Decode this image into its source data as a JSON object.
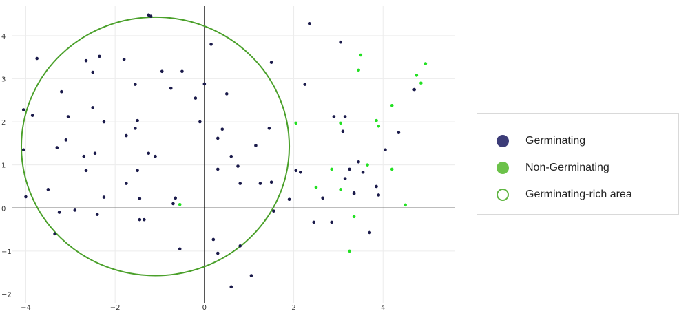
{
  "chart_data": {
    "type": "scatter",
    "xlim": [
      -4.3,
      5.6
    ],
    "ylim": [
      -2.2,
      4.7
    ],
    "x_ticks": [
      -4,
      -2,
      0,
      2,
      4
    ],
    "y_ticks": [
      -2,
      -1,
      0,
      1,
      2,
      3,
      4
    ],
    "grid": true,
    "legend_position": "right",
    "series": [
      {
        "name": "Germinating",
        "color": "#1a1a4a",
        "points": [
          [
            -4.05,
            2.28
          ],
          [
            -4.05,
            1.35
          ],
          [
            -4.0,
            0.26
          ],
          [
            -3.85,
            2.15
          ],
          [
            -3.75,
            3.47
          ],
          [
            -3.5,
            0.43
          ],
          [
            -3.3,
            1.4
          ],
          [
            -3.25,
            -0.1
          ],
          [
            -3.2,
            2.7
          ],
          [
            -3.1,
            1.58
          ],
          [
            -3.05,
            2.12
          ],
          [
            -2.9,
            -0.05
          ],
          [
            -3.35,
            -0.6
          ],
          [
            -2.65,
            3.42
          ],
          [
            -2.7,
            1.2
          ],
          [
            -2.65,
            0.87
          ],
          [
            -2.5,
            3.15
          ],
          [
            -2.5,
            2.33
          ],
          [
            -2.45,
            1.27
          ],
          [
            -2.4,
            -0.15
          ],
          [
            -2.35,
            3.52
          ],
          [
            -2.25,
            2.0
          ],
          [
            -2.25,
            0.25
          ],
          [
            -1.8,
            3.45
          ],
          [
            -1.75,
            1.68
          ],
          [
            -1.75,
            0.57
          ],
          [
            -1.55,
            2.87
          ],
          [
            -1.55,
            1.85
          ],
          [
            -1.5,
            2.03
          ],
          [
            -1.5,
            0.87
          ],
          [
            -1.45,
            0.22
          ],
          [
            -1.45,
            -0.27
          ],
          [
            -1.35,
            -0.27
          ],
          [
            -1.25,
            4.48
          ],
          [
            -1.2,
            4.45
          ],
          [
            -1.25,
            1.27
          ],
          [
            -1.1,
            1.2
          ],
          [
            -0.95,
            3.17
          ],
          [
            -0.75,
            2.78
          ],
          [
            -0.7,
            0.1
          ],
          [
            -0.65,
            0.23
          ],
          [
            -0.5,
            3.17
          ],
          [
            -0.55,
            -0.95
          ],
          [
            -0.2,
            2.55
          ],
          [
            -0.1,
            2.0
          ],
          [
            0.0,
            2.88
          ],
          [
            0.15,
            3.8
          ],
          [
            0.2,
            -0.73
          ],
          [
            0.3,
            1.62
          ],
          [
            0.3,
            0.9
          ],
          [
            0.3,
            -1.05
          ],
          [
            0.4,
            1.83
          ],
          [
            0.5,
            2.65
          ],
          [
            0.6,
            1.2
          ],
          [
            0.6,
            -1.83
          ],
          [
            0.75,
            0.97
          ],
          [
            0.8,
            0.57
          ],
          [
            0.8,
            -0.88
          ],
          [
            1.05,
            -1.57
          ],
          [
            1.15,
            1.45
          ],
          [
            1.25,
            0.57
          ],
          [
            1.45,
            1.85
          ],
          [
            1.5,
            3.38
          ],
          [
            1.5,
            0.6
          ],
          [
            1.55,
            -0.07
          ],
          [
            1.9,
            0.2
          ],
          [
            2.05,
            0.87
          ],
          [
            2.15,
            0.83
          ],
          [
            2.25,
            2.87
          ],
          [
            2.35,
            4.28
          ],
          [
            2.45,
            -0.33
          ],
          [
            2.65,
            0.23
          ],
          [
            2.85,
            -0.33
          ],
          [
            2.9,
            2.12
          ],
          [
            3.05,
            3.85
          ],
          [
            3.1,
            1.78
          ],
          [
            3.15,
            2.12
          ],
          [
            3.15,
            0.68
          ],
          [
            3.25,
            0.9
          ],
          [
            3.35,
            0.33
          ],
          [
            3.35,
            0.35
          ],
          [
            3.45,
            1.07
          ],
          [
            3.55,
            0.83
          ],
          [
            3.7,
            -0.57
          ],
          [
            3.85,
            0.5
          ],
          [
            3.9,
            0.3
          ],
          [
            4.05,
            1.35
          ],
          [
            4.35,
            1.75
          ],
          [
            4.7,
            2.75
          ]
        ]
      },
      {
        "name": "Non-Germinating",
        "color": "#22e022",
        "points": [
          [
            -0.55,
            0.08
          ],
          [
            2.05,
            1.97
          ],
          [
            2.5,
            0.48
          ],
          [
            2.85,
            0.9
          ],
          [
            3.05,
            0.43
          ],
          [
            3.05,
            1.97
          ],
          [
            3.25,
            -1.0
          ],
          [
            3.35,
            -0.2
          ],
          [
            3.45,
            3.2
          ],
          [
            3.5,
            3.55
          ],
          [
            3.65,
            1.0
          ],
          [
            3.85,
            2.03
          ],
          [
            3.9,
            1.9
          ],
          [
            4.2,
            2.38
          ],
          [
            4.2,
            0.9
          ],
          [
            4.5,
            0.07
          ],
          [
            4.75,
            3.08
          ],
          [
            4.85,
            2.9
          ],
          [
            4.95,
            3.35
          ]
        ]
      }
    ],
    "region": {
      "name": "Germinating-rich area",
      "shape": "circle",
      "center": [
        -1.1,
        1.43
      ],
      "radius": 3.0,
      "color": "#4aa02a"
    }
  },
  "legend": {
    "items": [
      {
        "label": "Germinating",
        "color": "#3c3c78",
        "style": "filled"
      },
      {
        "label": "Non-Germinating",
        "color": "#6cc24a",
        "style": "filled"
      },
      {
        "label": "Germinating-rich area",
        "color": "#5fb541",
        "style": "outline"
      }
    ]
  }
}
